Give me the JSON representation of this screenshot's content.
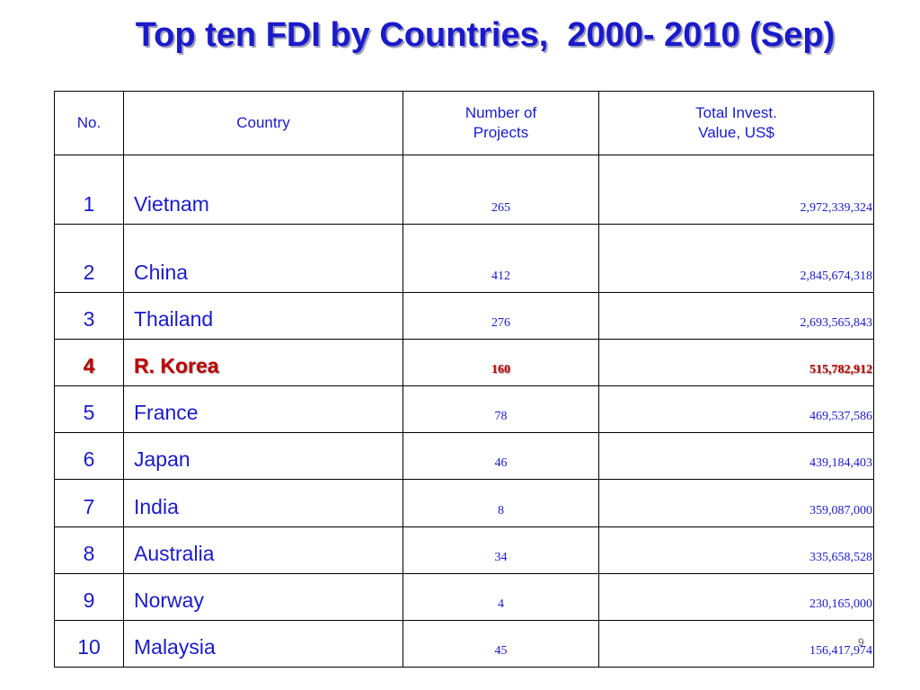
{
  "title": "Top ten FDI by Countries,  2000- 2010 (Sep)",
  "table": {
    "header": [
      "No.",
      "Country",
      "Number of Projects",
      "Total Invest. Value, US$"
    ],
    "rows": [
      [
        "1",
        "Vietnam",
        "265",
        "2,972,339,324"
      ],
      [
        "2",
        "China",
        "412",
        "2,845,674,318"
      ],
      [
        "3",
        "Thailand",
        "276",
        "2,693,565,843"
      ],
      [
        "4",
        "R. Korea",
        "160",
        "515,782,912"
      ],
      [
        "5",
        "France",
        "78",
        "469,537,586"
      ],
      [
        "6",
        "Japan",
        "46",
        "439,184,403"
      ],
      [
        "7",
        "India",
        "8",
        "359,087,000"
      ],
      [
        "8",
        "Australia",
        "34",
        "335,658,528"
      ],
      [
        "9",
        "Norway",
        "4",
        "230,165,000"
      ],
      [
        "10",
        "Malaysia",
        "45",
        "156,417,974"
      ]
    ],
    "highlight_row": 3
  },
  "page_number": "9"
}
